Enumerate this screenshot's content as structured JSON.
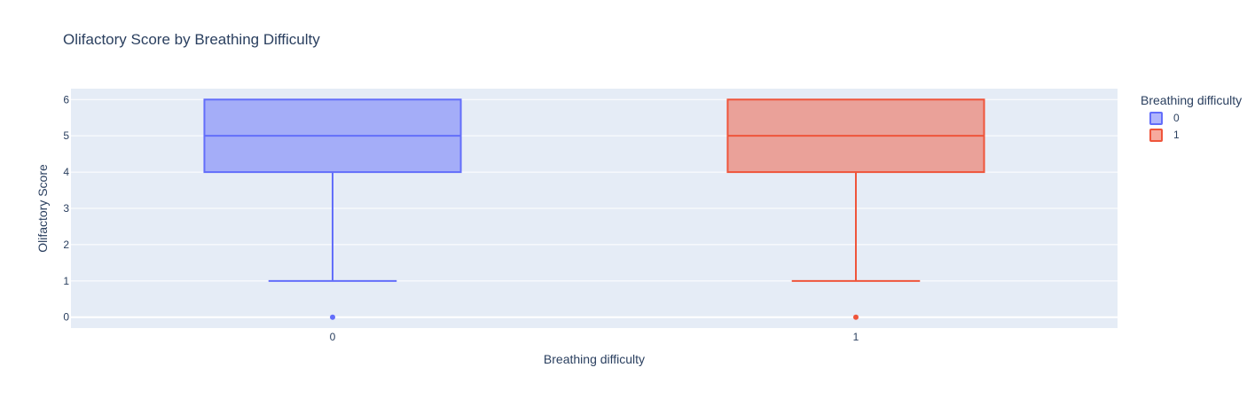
{
  "chart_data": {
    "type": "box",
    "title": "Olifactory Score by Breathing Difficulty",
    "xlabel": "Breathing difficulty",
    "ylabel": "Olifactory Score",
    "ylim": [
      -0.3,
      6.3
    ],
    "yticks": [
      0,
      1,
      2,
      3,
      4,
      5,
      6
    ],
    "categories": [
      "0",
      "1"
    ],
    "grid": true,
    "legend": {
      "title": "Breathing difficulty",
      "placement": "right"
    },
    "series": [
      {
        "name": "0",
        "category": "0",
        "color": "#636efa",
        "fill": "rgba(99,110,250,0.5)",
        "min": 1,
        "q1": 4,
        "median": 5,
        "q3": 6,
        "max": 6,
        "outliers": [
          0
        ]
      },
      {
        "name": "1",
        "category": "1",
        "color": "#ef553b",
        "fill": "rgba(239,85,59,0.5)",
        "min": 1,
        "q1": 4,
        "median": 5,
        "q3": 6,
        "max": 6,
        "outliers": [
          0
        ]
      }
    ]
  }
}
